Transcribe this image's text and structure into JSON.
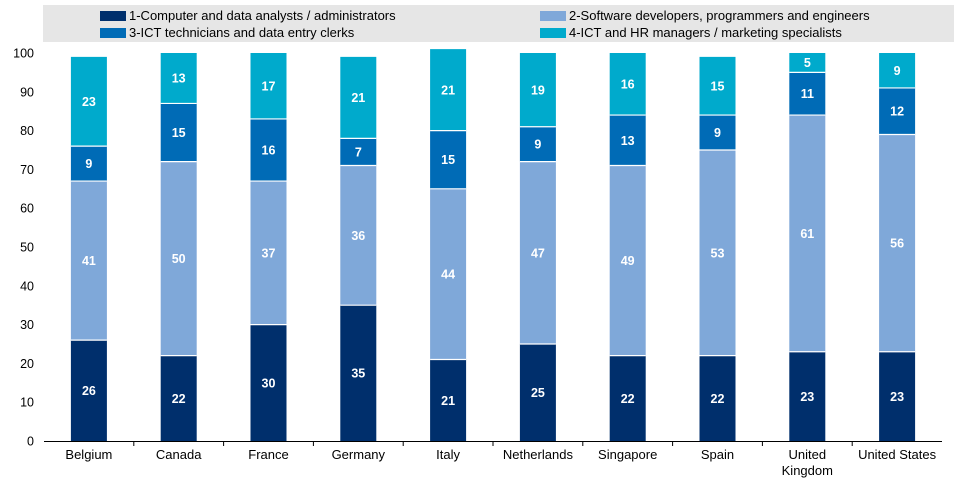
{
  "chart_data": {
    "type": "bar",
    "stacked": true,
    "categories": [
      "Belgium",
      "Canada",
      "France",
      "Germany",
      "Italy",
      "Netherlands",
      "Singapore",
      "Spain",
      "United Kingdom",
      "United States"
    ],
    "category_lines": [
      [
        "Belgium"
      ],
      [
        "Canada"
      ],
      [
        "France"
      ],
      [
        "Germany"
      ],
      [
        "Italy"
      ],
      [
        "Netherlands"
      ],
      [
        "Singapore"
      ],
      [
        "Spain"
      ],
      [
        "United",
        "Kingdom"
      ],
      [
        "United States"
      ]
    ],
    "series": [
      {
        "name": "1-Computer and data analysts / administrators",
        "color": "#002F6C",
        "values": [
          26,
          22,
          30,
          35,
          21,
          25,
          22,
          22,
          23,
          23
        ]
      },
      {
        "name": "2-Software developers, programmers and engineers",
        "color": "#7FA8D9",
        "values": [
          41,
          50,
          37,
          36,
          44,
          47,
          49,
          53,
          61,
          56
        ]
      },
      {
        "name": "3-ICT technicians and data entry clerks",
        "color": "#006BB6",
        "values": [
          9,
          15,
          16,
          7,
          15,
          9,
          13,
          9,
          11,
          12
        ]
      },
      {
        "name": "4-ICT and HR managers / marketing specialists",
        "color": "#00AACC",
        "values": [
          23,
          13,
          17,
          21,
          21,
          19,
          16,
          15,
          5,
          9
        ]
      }
    ],
    "ylim": [
      0,
      100
    ],
    "yticks": [
      0,
      10,
      20,
      30,
      40,
      50,
      60,
      70,
      80,
      90,
      100
    ],
    "title": "",
    "xlabel": "",
    "ylabel": "",
    "grid": false,
    "legend_position": "top"
  }
}
